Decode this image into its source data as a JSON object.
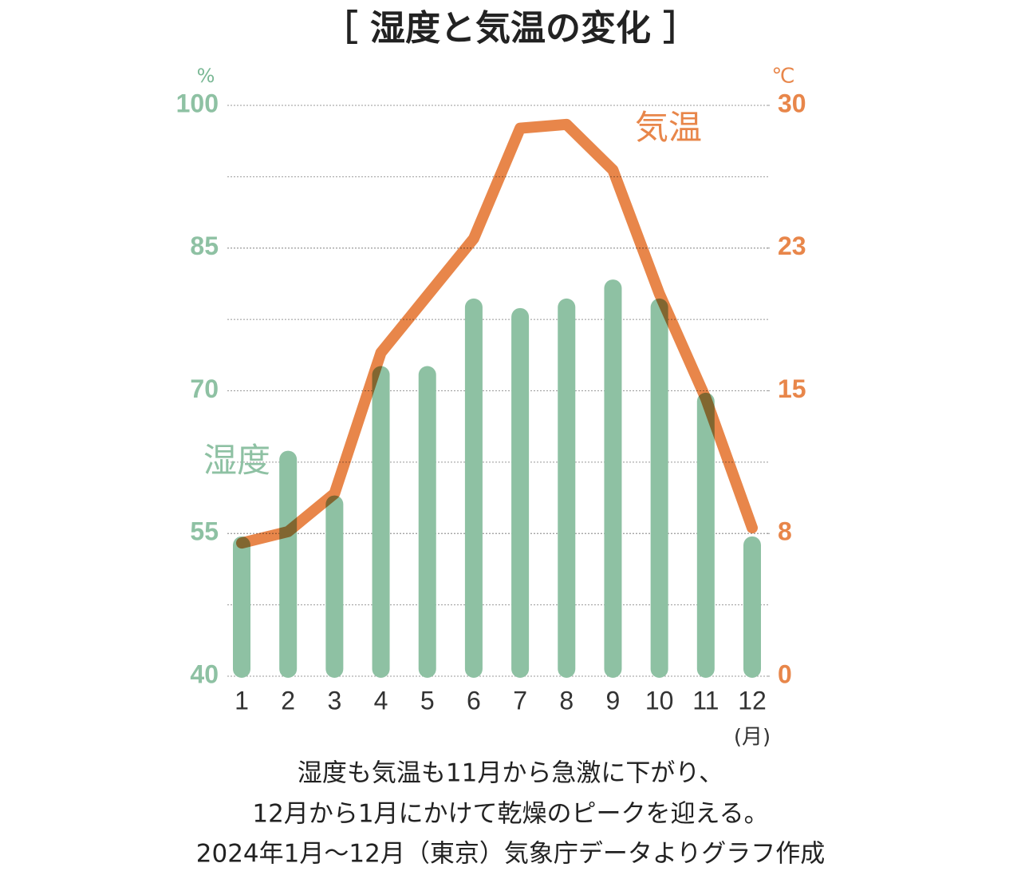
{
  "chart_data": {
    "type": "combo",
    "title": "［ 湿度と気温の変化 ］",
    "categories": [
      "1",
      "2",
      "3",
      "4",
      "5",
      "6",
      "7",
      "8",
      "9",
      "10",
      "11",
      "12"
    ],
    "x_label": "(月)",
    "series": [
      {
        "name": "湿度",
        "type": "bar",
        "color": "#8ec1a3",
        "values": [
          54.7,
          63.7,
          59.0,
          72.6,
          72.6,
          79.7,
          78.7,
          79.7,
          81.7,
          79.7,
          69.8,
          54.7
        ]
      },
      {
        "name": "気温",
        "type": "line",
        "axis": "y2",
        "color": "#e8864a",
        "values": [
          7.0,
          7.6,
          9.6,
          17.0,
          20.0,
          23.0,
          28.8,
          29.0,
          26.6,
          20.1,
          14.6,
          7.8
        ]
      }
    ],
    "y_unit": "%",
    "ylim": [
      40,
      100
    ],
    "yticks": [
      40,
      55,
      70,
      85,
      100
    ],
    "y2_unit": "℃",
    "y2lim": [
      0,
      30
    ],
    "y2ticks": [
      0,
      {
        "value": 7.5,
        "label": "8"
      },
      15,
      {
        "value": 22.5,
        "label": "23"
      },
      30
    ],
    "grid": true,
    "caption": [
      "湿度も気温も11月から急激に下がり、",
      "12月から1月にかけて乾燥のピークを迎える。",
      "2024年1月～12月（東京）気象庁データよりグラフ作成"
    ]
  }
}
